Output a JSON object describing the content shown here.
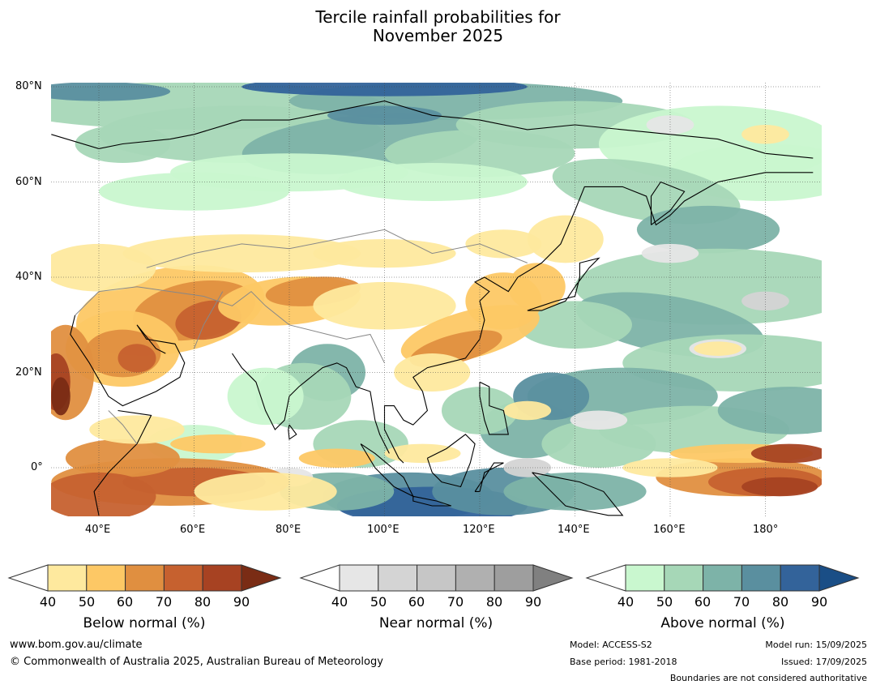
{
  "title_line1": "Tercile rainfall probabilities for",
  "title_line2": "November 2025",
  "map": {
    "lat_labels": [
      "80°N",
      "60°N",
      "40°N",
      "20°N",
      "0°"
    ],
    "lon_labels": [
      "40°E",
      "60°E",
      "80°E",
      "100°E",
      "120°E",
      "140°E",
      "160°E",
      "180°"
    ],
    "colors": {
      "below": [
        "#fee99e",
        "#fdc865",
        "#e08f40",
        "#c6612f",
        "#a74222",
        "#7a2c15"
      ],
      "near": [
        "#e6e6e6",
        "#d4d4d4",
        "#c6c6c6",
        "#b0b0b0",
        "#9e9e9e",
        "#808080"
      ],
      "above": [
        "#c9f7cf",
        "#a6d7b7",
        "#7db3a8",
        "#5a8f9f",
        "#33639a",
        "#1a4e86"
      ]
    }
  },
  "colorbars": [
    {
      "id": "below",
      "title": "Below normal (%)",
      "ticks": [
        "40",
        "50",
        "60",
        "70",
        "80",
        "90"
      ]
    },
    {
      "id": "near",
      "title": "Near normal (%)",
      "ticks": [
        "40",
        "50",
        "60",
        "70",
        "80",
        "90"
      ]
    },
    {
      "id": "above",
      "title": "Above normal (%)",
      "ticks": [
        "40",
        "50",
        "60",
        "70",
        "80",
        "90"
      ]
    }
  ],
  "footer": {
    "website": "www.bom.gov.au/climate",
    "copyright": "© Commonwealth of Australia 2025, Australian Bureau of Meteorology",
    "model": "Model: ACCESS-S2",
    "base_period": "Base period: 1981-2018",
    "model_run": "Model run: 15/09/2025",
    "issued": "Issued: 17/09/2025",
    "disclaimer": "Boundaries are not considered authoritative"
  }
}
